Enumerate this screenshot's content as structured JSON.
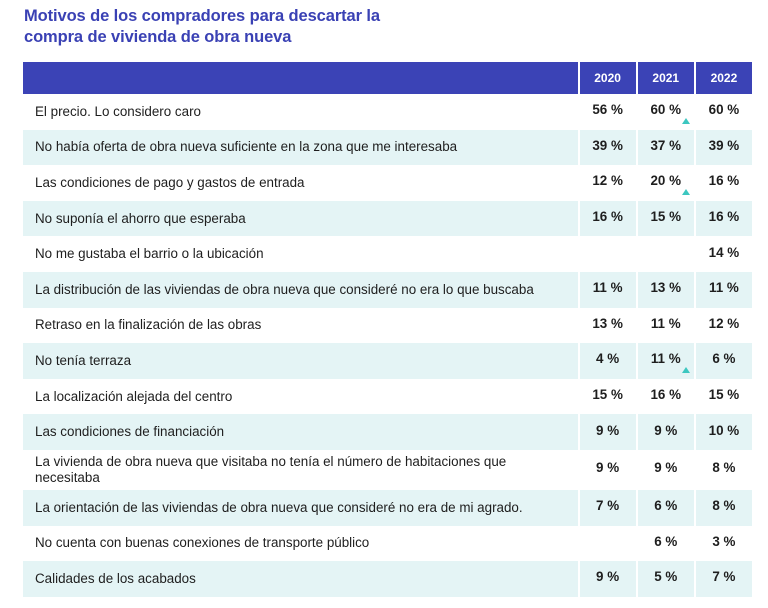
{
  "title_lines": [
    "Motivos de los compradores para descartar la",
    "compra de vivienda de obra nueva"
  ],
  "colors": {
    "header_bg": "#3b43b6",
    "title": "#3a41b4",
    "stripe": "#e4f4f5",
    "increase_marker": "#3cc7c0"
  },
  "chart_data": {
    "type": "table",
    "title": "Motivos de los compradores para descartar la compra de vivienda de obra nueva",
    "columns": [
      "2020",
      "2021",
      "2022"
    ],
    "rows": [
      {
        "label": "El precio. Lo considero caro",
        "values": [
          "56 %",
          "60 %",
          "60 %"
        ],
        "increase": [
          false,
          true,
          false
        ]
      },
      {
        "label": "No había oferta de obra nueva suficiente en la zona que me interesaba",
        "values": [
          "39 %",
          "37 %",
          "39 %"
        ],
        "increase": [
          false,
          false,
          false
        ]
      },
      {
        "label": "Las condiciones de pago y gastos de entrada",
        "values": [
          "12 %",
          "20 %",
          "16 %"
        ],
        "increase": [
          false,
          true,
          false
        ]
      },
      {
        "label": "No suponía el ahorro que esperaba",
        "values": [
          "16 %",
          "15 %",
          "16 %"
        ],
        "increase": [
          false,
          false,
          false
        ]
      },
      {
        "label": "No me gustaba el barrio o la ubicación",
        "values": [
          "",
          "",
          "14 %"
        ],
        "increase": [
          false,
          false,
          false
        ]
      },
      {
        "label": "La distribución de las viviendas de obra nueva que consideré no era lo que buscaba",
        "values": [
          "11 %",
          "13 %",
          "11 %"
        ],
        "increase": [
          false,
          false,
          false
        ]
      },
      {
        "label": "Retraso en la finalización de las obras",
        "values": [
          "13 %",
          "11 %",
          "12 %"
        ],
        "increase": [
          false,
          false,
          false
        ]
      },
      {
        "label": "No tenía terraza",
        "values": [
          "4 %",
          "11 %",
          "6 %"
        ],
        "increase": [
          false,
          true,
          false
        ]
      },
      {
        "label": "La localización alejada del centro",
        "values": [
          "15 %",
          "16 %",
          "15 %"
        ],
        "increase": [
          false,
          false,
          false
        ]
      },
      {
        "label": "Las condiciones de financiación",
        "values": [
          "9 %",
          "9 %",
          "10 %"
        ],
        "increase": [
          false,
          false,
          false
        ]
      },
      {
        "label": "La vivienda de obra nueva que visitaba no tenía el número de habitaciones que necesitaba",
        "values": [
          "9 %",
          "9 %",
          "8 %"
        ],
        "increase": [
          false,
          false,
          false
        ]
      },
      {
        "label": "La orientación de las viviendas de obra nueva que consideré no era de mi agrado.",
        "values": [
          "7 %",
          "6 %",
          "8 %"
        ],
        "increase": [
          false,
          false,
          false
        ]
      },
      {
        "label": "No cuenta con buenas conexiones de transporte público",
        "values": [
          "",
          "6 %",
          "3 %"
        ],
        "increase": [
          false,
          false,
          false
        ]
      },
      {
        "label": "Calidades de los acabados",
        "values": [
          "9 %",
          "5 %",
          "7 %"
        ],
        "increase": [
          false,
          false,
          false
        ]
      }
    ]
  }
}
